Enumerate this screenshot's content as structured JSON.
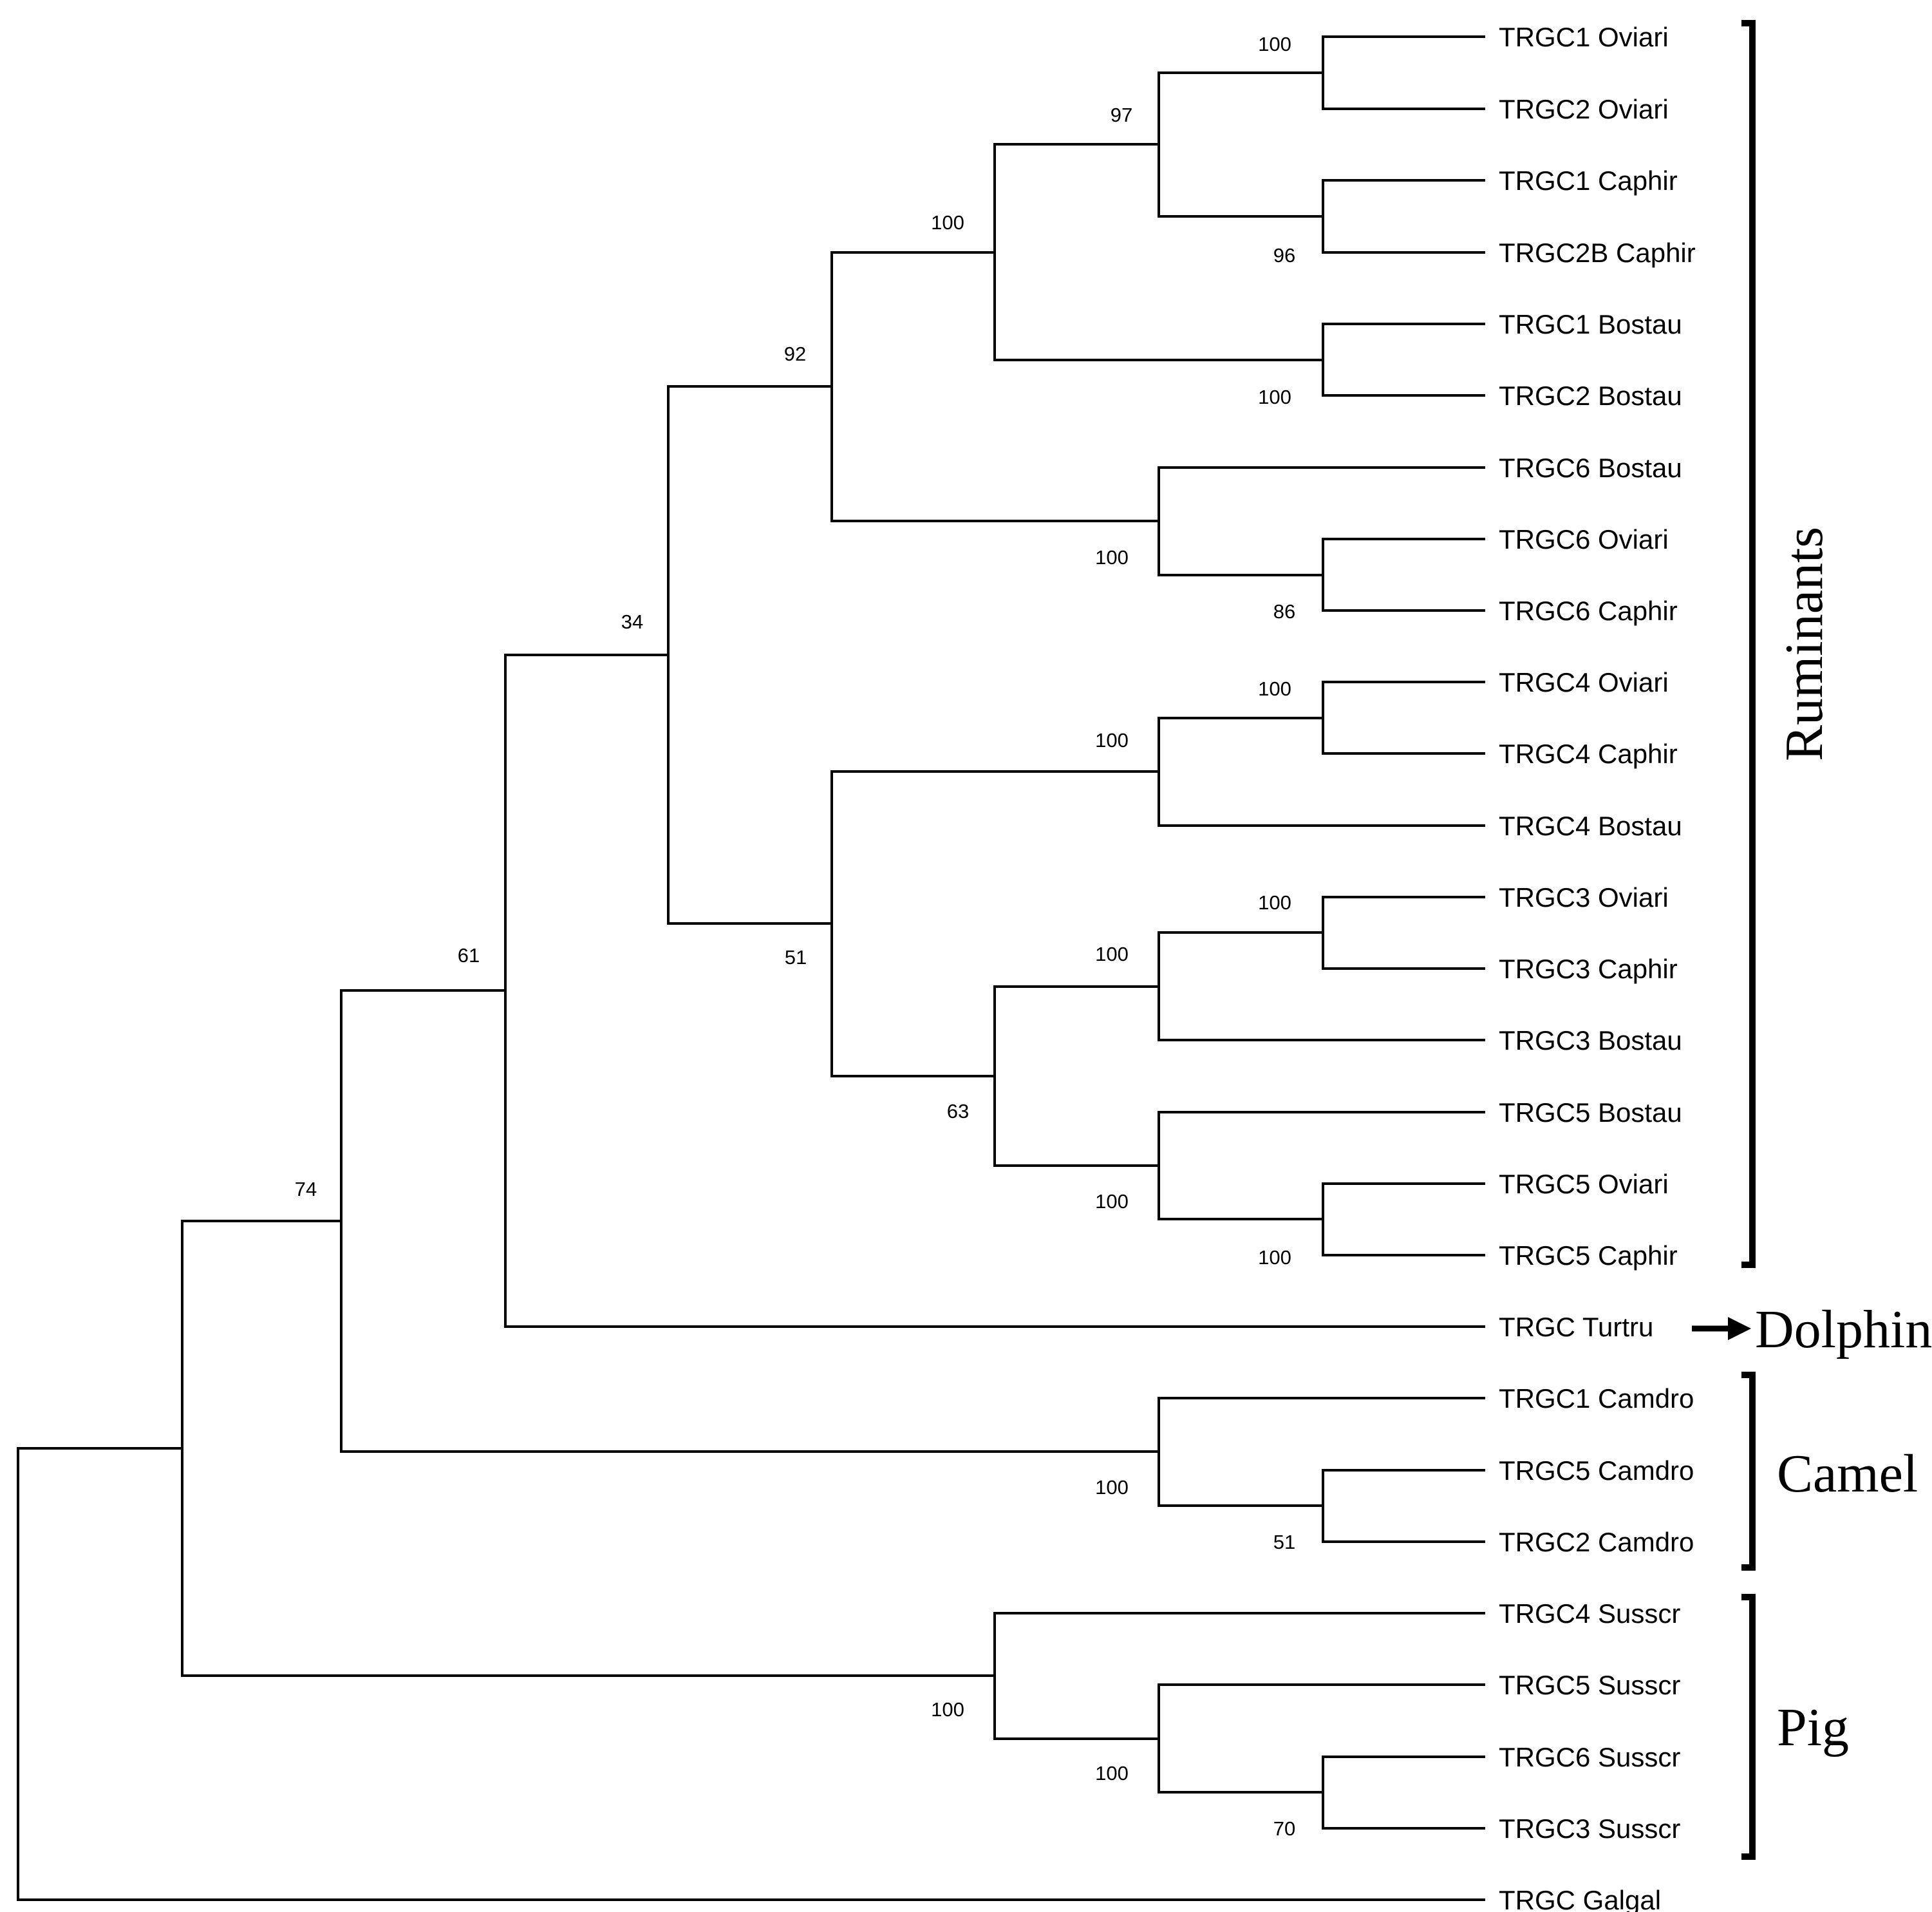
{
  "tree": {
    "leaves": [
      "TRGC1 Oviari",
      "TRGC2 Oviari",
      "TRGC1 Caphir",
      "TRGC2B Caphir",
      "TRGC1 Bostau",
      "TRGC2 Bostau",
      "TRGC6 Bostau",
      "TRGC6 Oviari",
      "TRGC6 Caphir",
      "TRGC4 Oviari",
      "TRGC4 Caphir",
      "TRGC4 Bostau",
      "TRGC3 Oviari",
      "TRGC3 Caphir",
      "TRGC3 Bostau",
      "TRGC5 Bostau",
      "TRGC5 Oviari",
      "TRGC5 Caphir",
      "TRGC Turtru",
      "TRGC1 Camdro",
      "TRGC5 Camdro",
      "TRGC2 Camdro",
      "TRGC4 Susscr",
      "TRGC5 Susscr",
      "TRGC6 Susscr",
      "TRGC3 Susscr",
      "TRGC Galgal"
    ],
    "bootstrap": {
      "n1": "100",
      "n2": "96",
      "n3": "97",
      "n4": "100",
      "n5": "100",
      "n6": "86",
      "n7": "100",
      "n8": "92",
      "n9": "100",
      "n10": "100",
      "n11": "100",
      "n12": "100",
      "n13": "100",
      "n14": "100",
      "n15": "63",
      "n16": "51",
      "n17": "34",
      "n18": "61",
      "n19": "51",
      "n20": "100",
      "n21": "74",
      "n22": "70",
      "n23": "100",
      "n24": "100"
    }
  },
  "groups": {
    "ruminants": "Ruminants",
    "dolphin": "Dolphin",
    "camel": "Camel",
    "pig": "Pig"
  }
}
